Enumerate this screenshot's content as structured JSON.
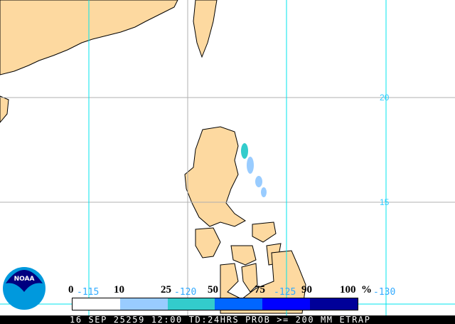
{
  "map": {
    "latitude_labels": [
      "20",
      "15"
    ],
    "longitude_labels": [
      "-115",
      "-120",
      "-125",
      "-130"
    ],
    "land_color": "#fdd9a0",
    "grid_color_primary": "#00e5ee",
    "grid_color_secondary": "#b0b0b0"
  },
  "legend": {
    "ticks": [
      "0",
      "10",
      "25",
      "50",
      "75",
      "90",
      "100"
    ],
    "unit": "%",
    "colors": [
      "#ffffff",
      "#99ccff",
      "#33cccc",
      "#0066ff",
      "#0000ff",
      "#000099"
    ]
  },
  "logo": {
    "text": "NOAA"
  },
  "footer": {
    "caption": "16 SEP 25259 12:00 TD:24HRS PROB >= 200 MM ETRAP"
  }
}
